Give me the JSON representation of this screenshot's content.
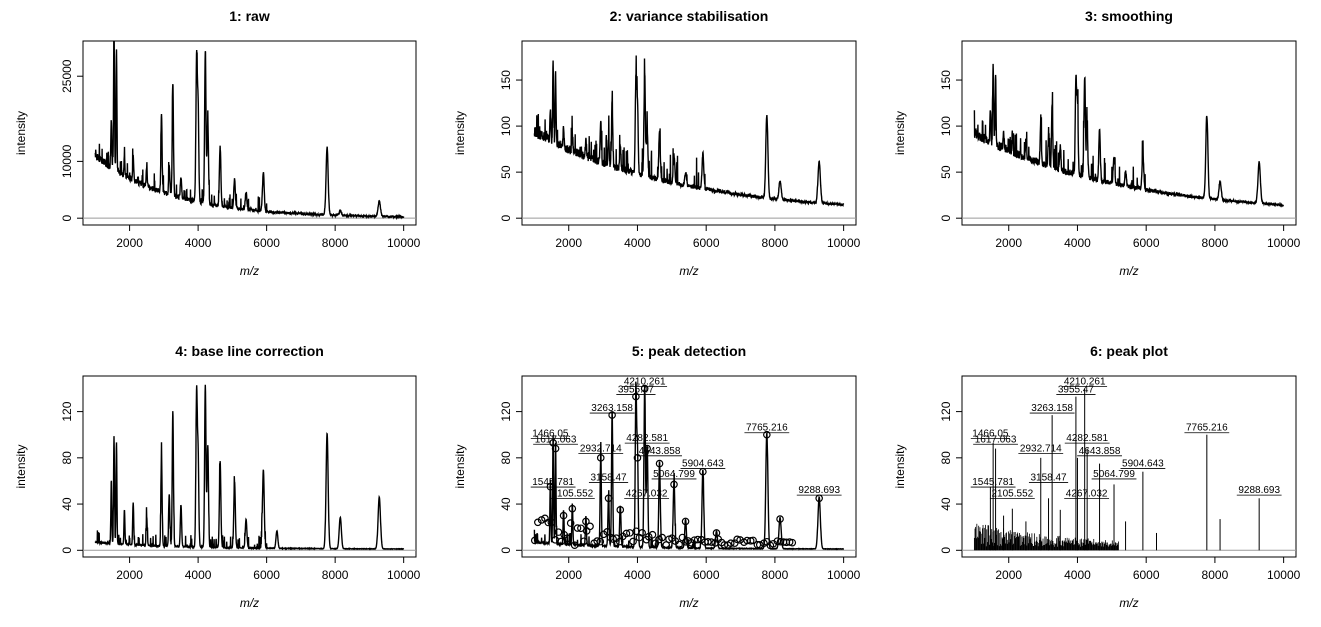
{
  "chart_data": [
    {
      "type": "line",
      "title": "1: raw",
      "xlabel": "m/z",
      "ylabel": "intensity",
      "xlim": [
        1000,
        10000
      ],
      "ylim": [
        0,
        30000
      ],
      "xticks": [
        2000,
        4000,
        6000,
        8000,
        10000
      ],
      "yticks": [
        0,
        10000,
        25000
      ],
      "baseline": {
        "a": 11000,
        "b": 0,
        "c": 2200,
        "floor": 60
      },
      "peaks": [
        [
          1466,
          8500
        ],
        [
          1546,
          25500
        ],
        [
          1617,
          21000
        ],
        [
          2105,
          4000
        ],
        [
          2932,
          14000
        ],
        [
          3158,
          5000
        ],
        [
          3263,
          20000
        ],
        [
          3955,
          25500
        ],
        [
          4210,
          26500
        ],
        [
          4282,
          14500
        ],
        [
          4643,
          10500
        ],
        [
          5064,
          5000
        ],
        [
          5904,
          6800
        ],
        [
          7765,
          12000
        ],
        [
          9288,
          2700
        ],
        [
          1850,
          3500
        ],
        [
          2500,
          3000
        ],
        [
          3500,
          3500
        ],
        [
          4000,
          17000
        ],
        [
          5400,
          3000
        ],
        [
          8150,
          800
        ]
      ],
      "grid": false
    },
    {
      "type": "line",
      "title": "2: variance stabilisation",
      "xlabel": "m/z",
      "ylabel": "intensity",
      "xlim": [
        1000,
        10000
      ],
      "ylim": [
        0,
        185
      ],
      "xticks": [
        2000,
        4000,
        6000,
        8000,
        10000
      ],
      "yticks": [
        0,
        50,
        100,
        150
      ],
      "baseline": {
        "a": 90,
        "b": 0,
        "c": 4200,
        "floor": 4
      },
      "peaks": [
        [
          1466,
          35
        ],
        [
          1546,
          85
        ],
        [
          1617,
          75
        ],
        [
          2105,
          20
        ],
        [
          2932,
          45
        ],
        [
          3158,
          30
        ],
        [
          3263,
          70
        ],
        [
          3955,
          100
        ],
        [
          4210,
          110
        ],
        [
          4282,
          50
        ],
        [
          4643,
          55
        ],
        [
          5064,
          30
        ],
        [
          5904,
          38
        ],
        [
          7765,
          90
        ],
        [
          8150,
          20
        ],
        [
          9288,
          45
        ],
        [
          1850,
          20
        ],
        [
          2500,
          20
        ],
        [
          3500,
          25
        ],
        [
          4000,
          75
        ],
        [
          5400,
          15
        ]
      ],
      "grid": false
    },
    {
      "type": "line",
      "title": "3: smoothing",
      "xlabel": "m/z",
      "ylabel": "intensity",
      "xlim": [
        1000,
        10000
      ],
      "ylim": [
        0,
        185
      ],
      "xticks": [
        2000,
        4000,
        6000,
        8000,
        10000
      ],
      "yticks": [
        0,
        50,
        100,
        150
      ],
      "baseline": {
        "a": 88,
        "b": 0,
        "c": 4200,
        "floor": 4
      },
      "peaks": [
        [
          1466,
          35
        ],
        [
          1546,
          85
        ],
        [
          1617,
          75
        ],
        [
          2105,
          20
        ],
        [
          2932,
          45
        ],
        [
          3158,
          30
        ],
        [
          3263,
          70
        ],
        [
          3955,
          100
        ],
        [
          4210,
          110
        ],
        [
          4282,
          50
        ],
        [
          4643,
          55
        ],
        [
          5064,
          30
        ],
        [
          5904,
          38
        ],
        [
          7765,
          90
        ],
        [
          8150,
          20
        ],
        [
          9288,
          45
        ],
        [
          1850,
          20
        ],
        [
          2500,
          20
        ],
        [
          3500,
          25
        ],
        [
          4000,
          75
        ],
        [
          5400,
          15
        ]
      ],
      "grid": false
    },
    {
      "type": "line",
      "title": "4: base line correction",
      "xlabel": "m/z",
      "ylabel": "intensity",
      "xlim": [
        1000,
        10000
      ],
      "ylim": [
        0,
        145
      ],
      "xticks": [
        2000,
        4000,
        6000,
        8000,
        10000
      ],
      "yticks": [
        0,
        40,
        80,
        120
      ],
      "baseline": {
        "a": 6,
        "b": 0,
        "c": 2500,
        "floor": 1
      },
      "peaks": [
        [
          1466,
          55
        ],
        [
          1546,
          93
        ],
        [
          1617,
          88
        ],
        [
          2105,
          36
        ],
        [
          2932,
          80
        ],
        [
          3158,
          45
        ],
        [
          3263,
          117
        ],
        [
          3955,
          133
        ],
        [
          4210,
          140
        ],
        [
          4282,
          88
        ],
        [
          4643,
          75
        ],
        [
          5064,
          57
        ],
        [
          5904,
          68
        ],
        [
          7765,
          100
        ],
        [
          8150,
          27
        ],
        [
          9288,
          45
        ],
        [
          1850,
          30
        ],
        [
          2500,
          25
        ],
        [
          3500,
          35
        ],
        [
          4000,
          80
        ],
        [
          5400,
          25
        ],
        [
          6300,
          15
        ]
      ],
      "grid": false
    },
    {
      "type": "line",
      "title": "5: peak detection",
      "xlabel": "m/z",
      "ylabel": "intensity",
      "xlim": [
        1000,
        10000
      ],
      "ylim": [
        0,
        145
      ],
      "xticks": [
        2000,
        4000,
        6000,
        8000,
        10000
      ],
      "yticks": [
        0,
        40,
        80,
        120
      ],
      "baseline": {
        "a": 6,
        "b": 0,
        "c": 2500,
        "floor": 1
      },
      "peaks": [
        [
          1466,
          55
        ],
        [
          1546,
          93
        ],
        [
          1617,
          88
        ],
        [
          2105,
          36
        ],
        [
          2932,
          80
        ],
        [
          3158,
          45
        ],
        [
          3263,
          117
        ],
        [
          3955,
          133
        ],
        [
          4210,
          140
        ],
        [
          4282,
          88
        ],
        [
          4643,
          75
        ],
        [
          5064,
          57
        ],
        [
          5904,
          68
        ],
        [
          7765,
          100
        ],
        [
          8150,
          27
        ],
        [
          9288,
          45
        ],
        [
          1850,
          30
        ],
        [
          2500,
          25
        ],
        [
          3500,
          35
        ],
        [
          4000,
          80
        ],
        [
          5400,
          25
        ],
        [
          6300,
          15
        ]
      ],
      "markers": true,
      "labels": [
        {
          "mz": 1466.05,
          "text": "1466.05",
          "y": 95
        },
        {
          "mz": 1617.063,
          "text": "1617.063",
          "y": 90
        },
        {
          "mz": 1545.781,
          "text": "1545.781",
          "y": 53
        },
        {
          "mz": 2105.552,
          "text": "2105.552",
          "y": 43
        },
        {
          "mz": 2932.714,
          "text": "2932.714",
          "y": 82
        },
        {
          "mz": 3158.47,
          "text": "3158.47",
          "y": 57
        },
        {
          "mz": 3263.158,
          "text": "3263.158",
          "y": 117
        },
        {
          "mz": 3955.47,
          "text": "3955.47",
          "y": 133
        },
        {
          "mz": 4210.261,
          "text": "4210.261",
          "y": 140
        },
        {
          "mz": 4282.581,
          "text": "4282.581",
          "y": 91
        },
        {
          "mz": 4643.858,
          "text": "4643.858",
          "y": 80
        },
        {
          "mz": 4267.032,
          "text": "4267.032",
          "y": 43
        },
        {
          "mz": 5064.799,
          "text": "5064.799",
          "y": 60
        },
        {
          "mz": 5904.643,
          "text": "5904.643",
          "y": 69
        },
        {
          "mz": 7765.216,
          "text": "7765.216",
          "y": 100
        },
        {
          "mz": 9288.693,
          "text": "9288.693",
          "y": 46
        }
      ],
      "grid": false
    },
    {
      "type": "line",
      "title": "6: peak plot",
      "xlabel": "m/z",
      "ylabel": "intensity",
      "xlim": [
        1000,
        10000
      ],
      "ylim": [
        0,
        145
      ],
      "xticks": [
        2000,
        4000,
        6000,
        8000,
        10000
      ],
      "yticks": [
        0,
        40,
        80,
        120
      ],
      "sticks": [
        [
          1466,
          55
        ],
        [
          1546,
          93
        ],
        [
          1617,
          88
        ],
        [
          2105,
          36
        ],
        [
          2932,
          80
        ],
        [
          3158,
          45
        ],
        [
          3263,
          117
        ],
        [
          3955,
          133
        ],
        [
          4210,
          140
        ],
        [
          4282,
          88
        ],
        [
          4643,
          75
        ],
        [
          5064,
          57
        ],
        [
          5904,
          68
        ],
        [
          7765,
          100
        ],
        [
          8150,
          27
        ],
        [
          9288,
          45
        ],
        [
          1850,
          30
        ],
        [
          2500,
          25
        ],
        [
          3500,
          35
        ],
        [
          4000,
          80
        ],
        [
          5400,
          25
        ],
        [
          6300,
          15
        ]
      ],
      "labels": [
        {
          "mz": 1466.05,
          "text": "1466.05",
          "y": 95
        },
        {
          "mz": 1617.063,
          "text": "1617.063",
          "y": 90
        },
        {
          "mz": 1545.781,
          "text": "1545.781",
          "y": 53
        },
        {
          "mz": 2105.552,
          "text": "2105.552",
          "y": 43
        },
        {
          "mz": 2932.714,
          "text": "2932.714",
          "y": 82
        },
        {
          "mz": 3158.47,
          "text": "3158.47",
          "y": 57
        },
        {
          "mz": 3263.158,
          "text": "3263.158",
          "y": 117
        },
        {
          "mz": 3955.47,
          "text": "3955.47",
          "y": 133
        },
        {
          "mz": 4210.261,
          "text": "4210.261",
          "y": 140
        },
        {
          "mz": 4282.581,
          "text": "4282.581",
          "y": 91
        },
        {
          "mz": 4643.858,
          "text": "4643.858",
          "y": 80
        },
        {
          "mz": 4267.032,
          "text": "4267.032",
          "y": 43
        },
        {
          "mz": 5064.799,
          "text": "5064.799",
          "y": 60
        },
        {
          "mz": 5904.643,
          "text": "5904.643",
          "y": 69
        },
        {
          "mz": 7765.216,
          "text": "7765.216",
          "y": 100
        },
        {
          "mz": 9288.693,
          "text": "9288.693",
          "y": 46
        }
      ],
      "grid": false
    }
  ]
}
